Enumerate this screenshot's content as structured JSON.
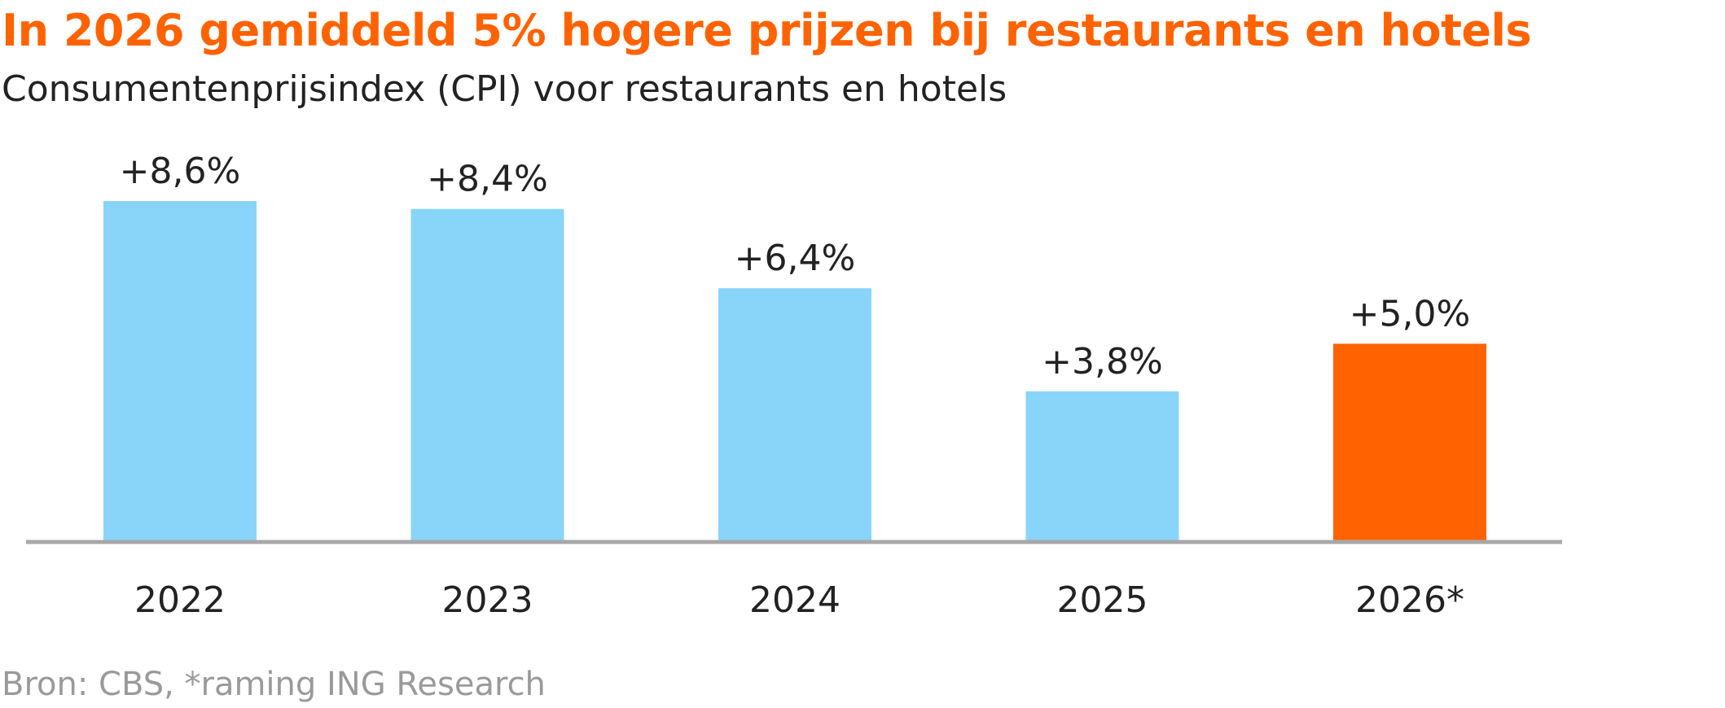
{
  "title": "In 2026 gemiddeld 5% hogere prijzen bij restaurants en hotels",
  "subtitle": "Consumentenprijsindex (CPI) voor restaurants en hotels",
  "footnote": "Bron: CBS, *raming ING Research",
  "colors": {
    "title": "#ff6200",
    "bar_default": "#89d5fa",
    "bar_highlight": "#ff6200",
    "baseline": "#a8a8a8"
  },
  "chart_data": {
    "type": "bar",
    "categories": [
      "2022",
      "2023",
      "2024",
      "2025",
      "2026*"
    ],
    "values": [
      8.6,
      8.4,
      6.4,
      3.8,
      5.0
    ],
    "data_labels": [
      "+8,6%",
      "+8,4%",
      "+6,4%",
      "+3,8%",
      "+5,0%"
    ],
    "highlight_index": 4,
    "title": "In 2026 gemiddeld 5% hogere prijzen bij restaurants en hotels",
    "subtitle": "Consumentenprijsindex (CPI) voor restaurants en hotels",
    "xlabel": "",
    "ylabel": "",
    "ylim": [
      0,
      8.6
    ],
    "grid": false,
    "legend": "none"
  }
}
